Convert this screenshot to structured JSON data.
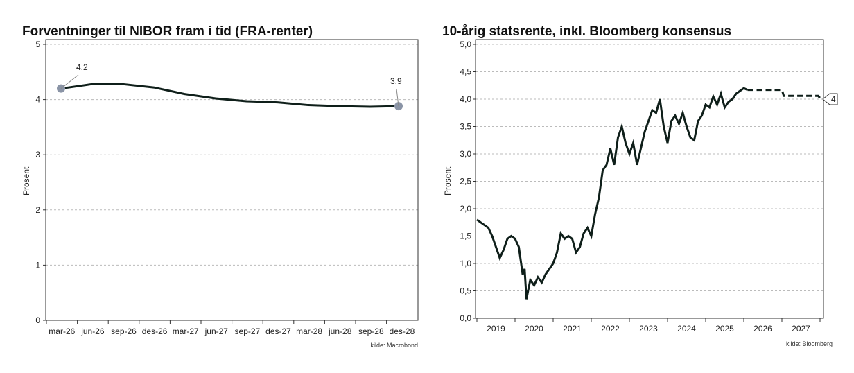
{
  "chart_data": [
    {
      "type": "line",
      "title": "Forventninger til NIBOR fram i tid (FRA-renter)",
      "ylabel": "Prosent",
      "xlabel": "",
      "source": "kilde: Macrobond",
      "ylim": [
        0,
        5
      ],
      "yticks": [
        "0",
        "1",
        "2",
        "3",
        "4",
        "5"
      ],
      "grid": true,
      "categories": [
        "mar-26",
        "jun-26",
        "sep-26",
        "des-26",
        "mar-27",
        "jun-27",
        "sep-27",
        "des-27",
        "mar-28",
        "jun-28",
        "sep-28",
        "des-28"
      ],
      "values": [
        4.2,
        4.28,
        4.28,
        4.22,
        4.1,
        4.02,
        3.97,
        3.95,
        3.9,
        3.88,
        3.87,
        3.88
      ],
      "annotations": [
        {
          "label": "4,2",
          "value": 4.2,
          "category": "mar-26"
        },
        {
          "label": "3,9",
          "value": 3.88,
          "category": "des-28"
        }
      ],
      "line_color": "#0f1f1a",
      "marker_color": "#8a94a6"
    },
    {
      "type": "line",
      "title": "10-årig statsrente, inkl. Bloomberg konsensus",
      "ylabel": "Prosent",
      "xlabel": "",
      "source": "kilde: Bloomberg",
      "ylim": [
        0,
        5
      ],
      "xlim": [
        2019,
        2028
      ],
      "yticks": [
        "0,0",
        "0,5",
        "1,0",
        "1,5",
        "2,0",
        "2,5",
        "3,0",
        "3,5",
        "4,0",
        "4,5",
        "5,0"
      ],
      "xticks": [
        "2019",
        "2020",
        "2021",
        "2022",
        "2023",
        "2024",
        "2025",
        "2026",
        "2027"
      ],
      "grid": true,
      "series": [
        {
          "style": "solid",
          "points": [
            [
              2019.0,
              1.8
            ],
            [
              2019.1,
              1.75
            ],
            [
              2019.2,
              1.7
            ],
            [
              2019.3,
              1.65
            ],
            [
              2019.4,
              1.5
            ],
            [
              2019.5,
              1.3
            ],
            [
              2019.6,
              1.1
            ],
            [
              2019.7,
              1.25
            ],
            [
              2019.8,
              1.45
            ],
            [
              2019.9,
              1.5
            ],
            [
              2020.0,
              1.45
            ],
            [
              2020.1,
              1.3
            ],
            [
              2020.2,
              0.8
            ],
            [
              2020.25,
              0.9
            ],
            [
              2020.3,
              0.35
            ],
            [
              2020.4,
              0.7
            ],
            [
              2020.5,
              0.6
            ],
            [
              2020.6,
              0.75
            ],
            [
              2020.7,
              0.65
            ],
            [
              2020.8,
              0.8
            ],
            [
              2020.9,
              0.9
            ],
            [
              2021.0,
              1.0
            ],
            [
              2021.1,
              1.2
            ],
            [
              2021.2,
              1.55
            ],
            [
              2021.3,
              1.45
            ],
            [
              2021.4,
              1.5
            ],
            [
              2021.5,
              1.45
            ],
            [
              2021.6,
              1.2
            ],
            [
              2021.7,
              1.3
            ],
            [
              2021.8,
              1.55
            ],
            [
              2021.9,
              1.65
            ],
            [
              2022.0,
              1.5
            ],
            [
              2022.1,
              1.9
            ],
            [
              2022.2,
              2.2
            ],
            [
              2022.3,
              2.7
            ],
            [
              2022.4,
              2.8
            ],
            [
              2022.5,
              3.1
            ],
            [
              2022.6,
              2.8
            ],
            [
              2022.7,
              3.3
            ],
            [
              2022.8,
              3.5
            ],
            [
              2022.9,
              3.2
            ],
            [
              2023.0,
              3.0
            ],
            [
              2023.1,
              3.2
            ],
            [
              2023.2,
              2.8
            ],
            [
              2023.3,
              3.1
            ],
            [
              2023.4,
              3.4
            ],
            [
              2023.5,
              3.6
            ],
            [
              2023.6,
              3.8
            ],
            [
              2023.7,
              3.75
            ],
            [
              2023.8,
              4.0
            ],
            [
              2023.9,
              3.5
            ],
            [
              2024.0,
              3.2
            ],
            [
              2024.1,
              3.6
            ],
            [
              2024.2,
              3.7
            ],
            [
              2024.3,
              3.55
            ],
            [
              2024.4,
              3.75
            ],
            [
              2024.5,
              3.5
            ],
            [
              2024.6,
              3.3
            ],
            [
              2024.7,
              3.25
            ],
            [
              2024.8,
              3.6
            ],
            [
              2024.9,
              3.7
            ],
            [
              2025.0,
              3.9
            ],
            [
              2025.1,
              3.85
            ],
            [
              2025.2,
              4.05
            ],
            [
              2025.3,
              3.9
            ],
            [
              2025.4,
              4.1
            ],
            [
              2025.5,
              3.85
            ],
            [
              2025.6,
              3.95
            ],
            [
              2025.7,
              4.0
            ],
            [
              2025.8,
              4.1
            ],
            [
              2025.9,
              4.15
            ],
            [
              2026.0,
              4.2
            ],
            [
              2026.1,
              4.17
            ]
          ]
        },
        {
          "style": "dashed",
          "points": [
            [
              2026.1,
              4.17
            ],
            [
              2027.0,
              4.17
            ],
            [
              2027.05,
              4.06
            ],
            [
              2027.95,
              4.06
            ],
            [
              2028.0,
              4.02
            ]
          ]
        }
      ],
      "end_label": "4",
      "line_color": "#0f1f1a"
    }
  ]
}
